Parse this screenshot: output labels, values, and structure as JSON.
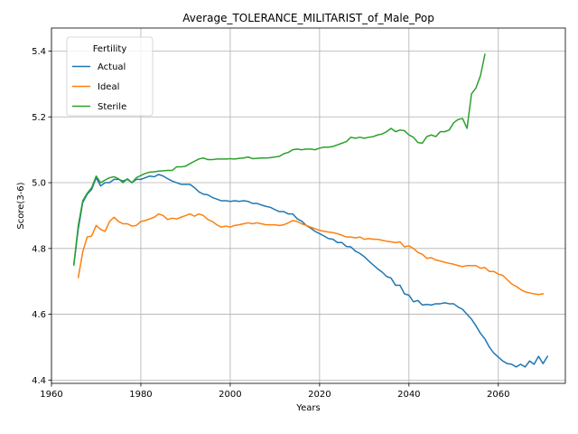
{
  "chart_data": {
    "type": "line",
    "title": "Average_TOLERANCE_MILITARIST_of_Male_Pop",
    "xlabel": "Years",
    "ylabel": "Score(3-6)",
    "xlim": [
      1960,
      2075
    ],
    "ylim": [
      4.39,
      5.47
    ],
    "xticks": [
      1960,
      1980,
      2000,
      2020,
      2040,
      2060
    ],
    "yticks": [
      4.4,
      4.6,
      4.8,
      5.0,
      5.2,
      5.4
    ],
    "grid": true,
    "legend": {
      "title": "Fertility",
      "placement": "upper-left"
    },
    "series": [
      {
        "name": "Actual",
        "color": "#1f77b4",
        "points": [
          [
            1965,
            4.75
          ],
          [
            1966,
            4.86
          ],
          [
            1967,
            4.94
          ],
          [
            1968,
            4.965
          ],
          [
            1969,
            4.98
          ],
          [
            1970,
            5.015
          ],
          [
            1971,
            4.99
          ],
          [
            1972,
            5.0
          ],
          [
            1973,
            5.0
          ],
          [
            1974,
            5.01
          ],
          [
            1975,
            5.01
          ],
          [
            1976,
            5.005
          ],
          [
            1977,
            5.01
          ],
          [
            1978,
            5.0
          ],
          [
            1979,
            5.01
          ],
          [
            1980,
            5.01
          ],
          [
            1981,
            5.015
          ],
          [
            1982,
            5.02
          ],
          [
            1983,
            5.018
          ],
          [
            1984,
            5.025
          ],
          [
            1985,
            5.02
          ],
          [
            1986,
            5.012
          ],
          [
            1987,
            5.005
          ],
          [
            1988,
            5.0
          ],
          [
            1989,
            4.995
          ],
          [
            1990,
            4.995
          ],
          [
            1991,
            4.995
          ],
          [
            1992,
            4.985
          ],
          [
            1993,
            4.972
          ],
          [
            1994,
            4.965
          ],
          [
            1995,
            4.963
          ],
          [
            1996,
            4.955
          ],
          [
            1997,
            4.95
          ],
          [
            1998,
            4.945
          ],
          [
            1999,
            4.945
          ],
          [
            2000,
            4.943
          ],
          [
            2001,
            4.945
          ],
          [
            2002,
            4.943
          ],
          [
            2003,
            4.945
          ],
          [
            2004,
            4.943
          ],
          [
            2005,
            4.937
          ],
          [
            2006,
            4.937
          ],
          [
            2007,
            4.932
          ],
          [
            2008,
            4.928
          ],
          [
            2009,
            4.925
          ],
          [
            2010,
            4.918
          ],
          [
            2011,
            4.912
          ],
          [
            2012,
            4.912
          ],
          [
            2013,
            4.905
          ],
          [
            2014,
            4.905
          ],
          [
            2015,
            4.89
          ],
          [
            2016,
            4.883
          ],
          [
            2017,
            4.87
          ],
          [
            2018,
            4.862
          ],
          [
            2019,
            4.852
          ],
          [
            2020,
            4.845
          ],
          [
            2021,
            4.838
          ],
          [
            2022,
            4.83
          ],
          [
            2023,
            4.828
          ],
          [
            2024,
            4.818
          ],
          [
            2025,
            4.818
          ],
          [
            2026,
            4.806
          ],
          [
            2027,
            4.805
          ],
          [
            2028,
            4.792
          ],
          [
            2029,
            4.785
          ],
          [
            2030,
            4.775
          ],
          [
            2031,
            4.762
          ],
          [
            2032,
            4.75
          ],
          [
            2033,
            4.738
          ],
          [
            2034,
            4.728
          ],
          [
            2035,
            4.715
          ],
          [
            2036,
            4.71
          ],
          [
            2037,
            4.688
          ],
          [
            2038,
            4.688
          ],
          [
            2039,
            4.662
          ],
          [
            2040,
            4.658
          ],
          [
            2041,
            4.638
          ],
          [
            2042,
            4.642
          ],
          [
            2043,
            4.628
          ],
          [
            2044,
            4.63
          ],
          [
            2045,
            4.628
          ],
          [
            2046,
            4.632
          ],
          [
            2047,
            4.632
          ],
          [
            2048,
            4.635
          ],
          [
            2049,
            4.632
          ],
          [
            2050,
            4.632
          ],
          [
            2051,
            4.622
          ],
          [
            2052,
            4.615
          ],
          [
            2053,
            4.6
          ],
          [
            2054,
            4.585
          ],
          [
            2055,
            4.565
          ],
          [
            2056,
            4.542
          ],
          [
            2057,
            4.525
          ],
          [
            2058,
            4.5
          ],
          [
            2059,
            4.482
          ],
          [
            2060,
            4.47
          ],
          [
            2061,
            4.458
          ],
          [
            2062,
            4.45
          ],
          [
            2063,
            4.448
          ],
          [
            2064,
            4.44
          ],
          [
            2065,
            4.448
          ],
          [
            2066,
            4.44
          ],
          [
            2067,
            4.458
          ],
          [
            2068,
            4.448
          ],
          [
            2069,
            4.472
          ],
          [
            2070,
            4.45
          ],
          [
            2071,
            4.472
          ]
        ]
      },
      {
        "name": "Ideal",
        "color": "#ff7f0e",
        "points": [
          [
            1966,
            4.712
          ],
          [
            1967,
            4.79
          ],
          [
            1968,
            4.835
          ],
          [
            1969,
            4.838
          ],
          [
            1970,
            4.87
          ],
          [
            1971,
            4.858
          ],
          [
            1972,
            4.852
          ],
          [
            1973,
            4.882
          ],
          [
            1974,
            4.895
          ],
          [
            1975,
            4.882
          ],
          [
            1976,
            4.875
          ],
          [
            1977,
            4.875
          ],
          [
            1978,
            4.868
          ],
          [
            1979,
            4.87
          ],
          [
            1980,
            4.882
          ],
          [
            1981,
            4.885
          ],
          [
            1982,
            4.89
          ],
          [
            1983,
            4.895
          ],
          [
            1984,
            4.905
          ],
          [
            1985,
            4.9
          ],
          [
            1986,
            4.888
          ],
          [
            1987,
            4.892
          ],
          [
            1988,
            4.89
          ],
          [
            1989,
            4.895
          ],
          [
            1990,
            4.9
          ],
          [
            1991,
            4.905
          ],
          [
            1992,
            4.898
          ],
          [
            1993,
            4.905
          ],
          [
            1994,
            4.9
          ],
          [
            1995,
            4.888
          ],
          [
            1996,
            4.882
          ],
          [
            1997,
            4.872
          ],
          [
            1998,
            4.865
          ],
          [
            1999,
            4.868
          ],
          [
            2000,
            4.865
          ],
          [
            2001,
            4.87
          ],
          [
            2002,
            4.872
          ],
          [
            2003,
            4.875
          ],
          [
            2004,
            4.878
          ],
          [
            2005,
            4.875
          ],
          [
            2006,
            4.878
          ],
          [
            2007,
            4.875
          ],
          [
            2008,
            4.872
          ],
          [
            2009,
            4.872
          ],
          [
            2010,
            4.872
          ],
          [
            2011,
            4.87
          ],
          [
            2012,
            4.872
          ],
          [
            2013,
            4.878
          ],
          [
            2014,
            4.885
          ],
          [
            2015,
            4.882
          ],
          [
            2016,
            4.875
          ],
          [
            2017,
            4.87
          ],
          [
            2018,
            4.865
          ],
          [
            2019,
            4.86
          ],
          [
            2020,
            4.855
          ],
          [
            2021,
            4.852
          ],
          [
            2022,
            4.85
          ],
          [
            2023,
            4.848
          ],
          [
            2024,
            4.845
          ],
          [
            2025,
            4.84
          ],
          [
            2026,
            4.835
          ],
          [
            2027,
            4.835
          ],
          [
            2028,
            4.832
          ],
          [
            2029,
            4.835
          ],
          [
            2030,
            4.828
          ],
          [
            2031,
            4.83
          ],
          [
            2032,
            4.828
          ],
          [
            2033,
            4.828
          ],
          [
            2034,
            4.825
          ],
          [
            2035,
            4.822
          ],
          [
            2036,
            4.82
          ],
          [
            2037,
            4.818
          ],
          [
            2038,
            4.82
          ],
          [
            2039,
            4.805
          ],
          [
            2040,
            4.808
          ],
          [
            2041,
            4.8
          ],
          [
            2042,
            4.788
          ],
          [
            2043,
            4.782
          ],
          [
            2044,
            4.77
          ],
          [
            2045,
            4.772
          ],
          [
            2046,
            4.765
          ],
          [
            2047,
            4.762
          ],
          [
            2048,
            4.758
          ],
          [
            2049,
            4.755
          ],
          [
            2050,
            4.752
          ],
          [
            2051,
            4.748
          ],
          [
            2052,
            4.745
          ],
          [
            2053,
            4.748
          ],
          [
            2054,
            4.748
          ],
          [
            2055,
            4.748
          ],
          [
            2056,
            4.74
          ],
          [
            2057,
            4.742
          ],
          [
            2058,
            4.73
          ],
          [
            2059,
            4.73
          ],
          [
            2060,
            4.722
          ],
          [
            2061,
            4.718
          ],
          [
            2062,
            4.705
          ],
          [
            2063,
            4.692
          ],
          [
            2064,
            4.685
          ],
          [
            2065,
            4.675
          ],
          [
            2066,
            4.668
          ],
          [
            2067,
            4.665
          ],
          [
            2068,
            4.662
          ],
          [
            2069,
            4.66
          ],
          [
            2070,
            4.662
          ]
        ]
      },
      {
        "name": "Sterile",
        "color": "#2ca02c",
        "points": [
          [
            1965,
            4.75
          ],
          [
            1966,
            4.87
          ],
          [
            1967,
            4.945
          ],
          [
            1968,
            4.968
          ],
          [
            1969,
            4.985
          ],
          [
            1970,
            5.02
          ],
          [
            1971,
            5.0
          ],
          [
            1972,
            5.008
          ],
          [
            1973,
            5.015
          ],
          [
            1974,
            5.018
          ],
          [
            1975,
            5.012
          ],
          [
            1976,
            5.0
          ],
          [
            1977,
            5.012
          ],
          [
            1978,
            5.0
          ],
          [
            1979,
            5.015
          ],
          [
            1980,
            5.022
          ],
          [
            1981,
            5.028
          ],
          [
            1982,
            5.032
          ],
          [
            1983,
            5.033
          ],
          [
            1984,
            5.035
          ],
          [
            1985,
            5.036
          ],
          [
            1986,
            5.037
          ],
          [
            1987,
            5.037
          ],
          [
            1988,
            5.048
          ],
          [
            1989,
            5.048
          ],
          [
            1990,
            5.05
          ],
          [
            1991,
            5.058
          ],
          [
            1992,
            5.065
          ],
          [
            1993,
            5.072
          ],
          [
            1994,
            5.075
          ],
          [
            1995,
            5.07
          ],
          [
            1996,
            5.07
          ],
          [
            1997,
            5.072
          ],
          [
            1998,
            5.072
          ],
          [
            1999,
            5.072
          ],
          [
            2000,
            5.073
          ],
          [
            2001,
            5.072
          ],
          [
            2002,
            5.074
          ],
          [
            2003,
            5.075
          ],
          [
            2004,
            5.078
          ],
          [
            2005,
            5.073
          ],
          [
            2006,
            5.074
          ],
          [
            2007,
            5.075
          ],
          [
            2008,
            5.075
          ],
          [
            2009,
            5.076
          ],
          [
            2010,
            5.078
          ],
          [
            2011,
            5.08
          ],
          [
            2012,
            5.088
          ],
          [
            2013,
            5.092
          ],
          [
            2014,
            5.1
          ],
          [
            2015,
            5.102
          ],
          [
            2016,
            5.1
          ],
          [
            2017,
            5.102
          ],
          [
            2018,
            5.102
          ],
          [
            2019,
            5.1
          ],
          [
            2020,
            5.105
          ],
          [
            2021,
            5.108
          ],
          [
            2022,
            5.108
          ],
          [
            2023,
            5.11
          ],
          [
            2024,
            5.115
          ],
          [
            2025,
            5.12
          ],
          [
            2026,
            5.125
          ],
          [
            2027,
            5.138
          ],
          [
            2028,
            5.135
          ],
          [
            2029,
            5.138
          ],
          [
            2030,
            5.135
          ],
          [
            2031,
            5.138
          ],
          [
            2032,
            5.14
          ],
          [
            2033,
            5.145
          ],
          [
            2034,
            5.148
          ],
          [
            2035,
            5.155
          ],
          [
            2036,
            5.165
          ],
          [
            2037,
            5.155
          ],
          [
            2038,
            5.16
          ],
          [
            2039,
            5.158
          ],
          [
            2040,
            5.145
          ],
          [
            2041,
            5.138
          ],
          [
            2042,
            5.122
          ],
          [
            2043,
            5.12
          ],
          [
            2044,
            5.14
          ],
          [
            2045,
            5.145
          ],
          [
            2046,
            5.14
          ],
          [
            2047,
            5.155
          ],
          [
            2048,
            5.155
          ],
          [
            2049,
            5.16
          ],
          [
            2050,
            5.182
          ],
          [
            2051,
            5.192
          ],
          [
            2052,
            5.195
          ],
          [
            2053,
            5.165
          ],
          [
            2054,
            5.27
          ],
          [
            2055,
            5.288
          ],
          [
            2056,
            5.325
          ],
          [
            2057,
            5.39
          ]
        ]
      }
    ]
  }
}
